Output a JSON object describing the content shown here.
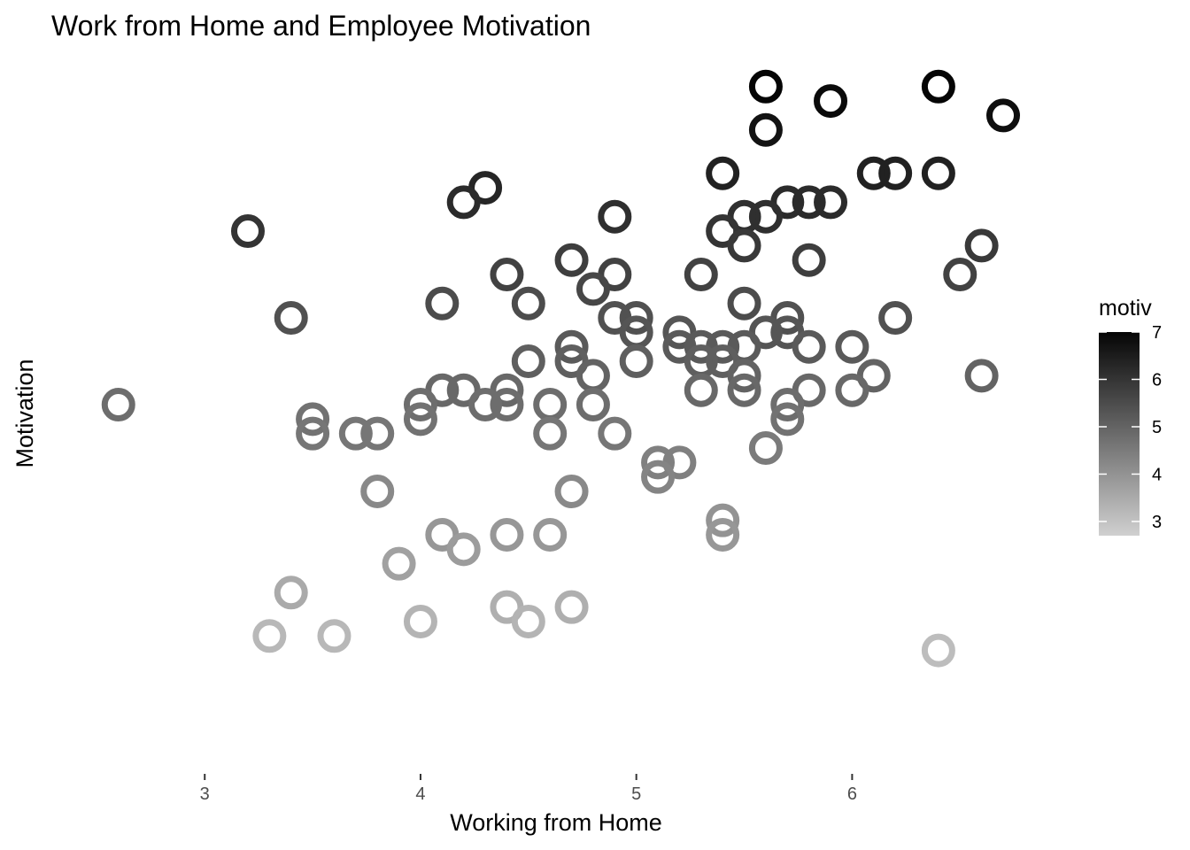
{
  "chart_data": {
    "type": "scatter",
    "title": "Work from Home and Employee Motivation",
    "xlabel": "Working from Home",
    "ylabel": "Motivation",
    "xlim": [
      2.4,
      6.86
    ],
    "ylim": [
      2.32,
      7.17
    ],
    "x_ticks": [
      "3",
      "4",
      "5",
      "6"
    ],
    "y_ticks": [],
    "grid": false,
    "legend": {
      "title": "motiv",
      "placement": "right",
      "type": "colorbar",
      "range": [
        2.7,
        7.0
      ],
      "labels": [
        "7",
        "6",
        "5",
        "4",
        "3"
      ],
      "color_low": "#d0d0d0",
      "color_high": "#050505"
    },
    "points": [
      {
        "x": 5.6,
        "y": 7.0
      },
      {
        "x": 6.4,
        "y": 7.0
      },
      {
        "x": 5.9,
        "y": 6.9
      },
      {
        "x": 6.7,
        "y": 6.8
      },
      {
        "x": 5.6,
        "y": 6.7
      },
      {
        "x": 5.4,
        "y": 6.4
      },
      {
        "x": 6.1,
        "y": 6.4
      },
      {
        "x": 6.2,
        "y": 6.4
      },
      {
        "x": 6.4,
        "y": 6.4
      },
      {
        "x": 4.3,
        "y": 6.3
      },
      {
        "x": 4.2,
        "y": 6.2
      },
      {
        "x": 5.7,
        "y": 6.2
      },
      {
        "x": 5.8,
        "y": 6.2
      },
      {
        "x": 5.9,
        "y": 6.2
      },
      {
        "x": 4.9,
        "y": 6.1
      },
      {
        "x": 5.5,
        "y": 6.1
      },
      {
        "x": 5.6,
        "y": 6.1
      },
      {
        "x": 3.2,
        "y": 6.0
      },
      {
        "x": 5.4,
        "y": 6.0
      },
      {
        "x": 5.5,
        "y": 5.9
      },
      {
        "x": 6.6,
        "y": 5.9
      },
      {
        "x": 4.7,
        "y": 5.8
      },
      {
        "x": 5.8,
        "y": 5.8
      },
      {
        "x": 4.4,
        "y": 5.7
      },
      {
        "x": 4.9,
        "y": 5.7
      },
      {
        "x": 5.3,
        "y": 5.7
      },
      {
        "x": 6.5,
        "y": 5.7
      },
      {
        "x": 4.8,
        "y": 5.6
      },
      {
        "x": 4.1,
        "y": 5.5
      },
      {
        "x": 4.5,
        "y": 5.5
      },
      {
        "x": 5.5,
        "y": 5.5
      },
      {
        "x": 3.4,
        "y": 5.4
      },
      {
        "x": 4.9,
        "y": 5.4
      },
      {
        "x": 5.0,
        "y": 5.4
      },
      {
        "x": 5.7,
        "y": 5.4
      },
      {
        "x": 6.2,
        "y": 5.4
      },
      {
        "x": 5.0,
        "y": 5.3
      },
      {
        "x": 5.2,
        "y": 5.3
      },
      {
        "x": 5.6,
        "y": 5.3
      },
      {
        "x": 5.7,
        "y": 5.3
      },
      {
        "x": 4.7,
        "y": 5.2
      },
      {
        "x": 5.2,
        "y": 5.2
      },
      {
        "x": 5.3,
        "y": 5.2
      },
      {
        "x": 5.4,
        "y": 5.2
      },
      {
        "x": 5.5,
        "y": 5.2
      },
      {
        "x": 5.8,
        "y": 5.2
      },
      {
        "x": 6.0,
        "y": 5.2
      },
      {
        "x": 4.5,
        "y": 5.1
      },
      {
        "x": 4.7,
        "y": 5.1
      },
      {
        "x": 5.0,
        "y": 5.1
      },
      {
        "x": 5.3,
        "y": 5.1
      },
      {
        "x": 5.4,
        "y": 5.1
      },
      {
        "x": 4.8,
        "y": 5.0
      },
      {
        "x": 5.5,
        "y": 5.0
      },
      {
        "x": 6.1,
        "y": 5.0
      },
      {
        "x": 6.6,
        "y": 5.0
      },
      {
        "x": 4.1,
        "y": 4.9
      },
      {
        "x": 4.2,
        "y": 4.9
      },
      {
        "x": 4.4,
        "y": 4.9
      },
      {
        "x": 5.3,
        "y": 4.9
      },
      {
        "x": 5.5,
        "y": 4.9
      },
      {
        "x": 5.8,
        "y": 4.9
      },
      {
        "x": 6.0,
        "y": 4.9
      },
      {
        "x": 2.6,
        "y": 4.8
      },
      {
        "x": 4.0,
        "y": 4.8
      },
      {
        "x": 4.3,
        "y": 4.8
      },
      {
        "x": 4.4,
        "y": 4.8
      },
      {
        "x": 4.6,
        "y": 4.8
      },
      {
        "x": 4.8,
        "y": 4.8
      },
      {
        "x": 5.7,
        "y": 4.8
      },
      {
        "x": 3.5,
        "y": 4.7
      },
      {
        "x": 4.0,
        "y": 4.7
      },
      {
        "x": 5.7,
        "y": 4.7
      },
      {
        "x": 3.5,
        "y": 4.6
      },
      {
        "x": 3.7,
        "y": 4.6
      },
      {
        "x": 3.8,
        "y": 4.6
      },
      {
        "x": 4.6,
        "y": 4.6
      },
      {
        "x": 4.9,
        "y": 4.6
      },
      {
        "x": 5.6,
        "y": 4.5
      },
      {
        "x": 5.1,
        "y": 4.4
      },
      {
        "x": 5.2,
        "y": 4.4
      },
      {
        "x": 5.1,
        "y": 4.3
      },
      {
        "x": 3.8,
        "y": 4.2
      },
      {
        "x": 4.7,
        "y": 4.2
      },
      {
        "x": 5.4,
        "y": 4.0
      },
      {
        "x": 4.1,
        "y": 3.9
      },
      {
        "x": 4.4,
        "y": 3.9
      },
      {
        "x": 4.6,
        "y": 3.9
      },
      {
        "x": 5.4,
        "y": 3.9
      },
      {
        "x": 4.2,
        "y": 3.8
      },
      {
        "x": 3.9,
        "y": 3.7
      },
      {
        "x": 3.4,
        "y": 3.5
      },
      {
        "x": 4.4,
        "y": 3.4
      },
      {
        "x": 4.7,
        "y": 3.4
      },
      {
        "x": 4.0,
        "y": 3.3
      },
      {
        "x": 4.5,
        "y": 3.3
      },
      {
        "x": 3.3,
        "y": 3.2
      },
      {
        "x": 3.6,
        "y": 3.2
      },
      {
        "x": 6.4,
        "y": 3.1
      }
    ]
  }
}
